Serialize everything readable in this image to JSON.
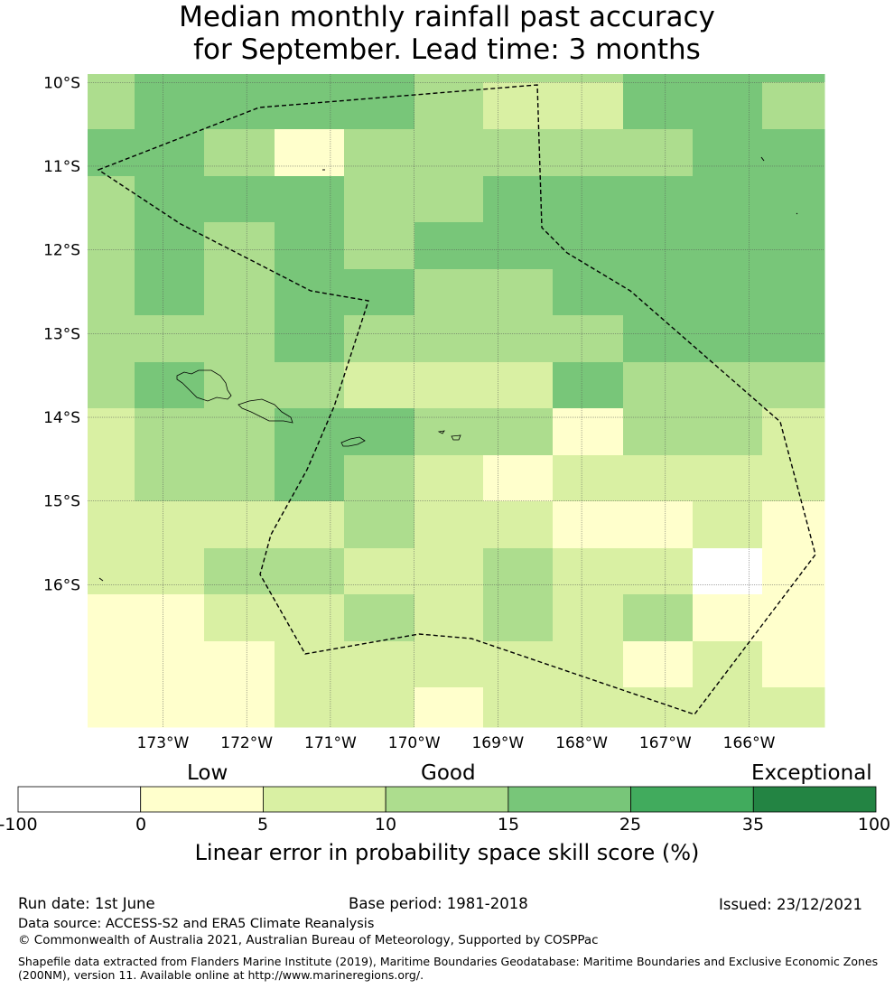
{
  "title_line1": "Median monthly rainfall past accuracy",
  "title_line2": "for September. Lead time: 3 months",
  "chart_data": {
    "type": "heatmap",
    "title": "Median monthly rainfall past accuracy for September. Lead time: 3 months",
    "y_ticks": [
      "10°S",
      "11°S",
      "12°S",
      "13°S",
      "14°S",
      "15°S",
      "16°S"
    ],
    "x_ticks": [
      "173°W",
      "172°W",
      "171°W",
      "170°W",
      "169°W",
      "168°W",
      "167°W",
      "166°W"
    ],
    "lon_range": [
      -173.9,
      -165.1
    ],
    "lat_range": [
      -17.7,
      -9.9
    ],
    "cell_grid": {
      "columns": 11,
      "rows": 14,
      "cell_class_values": [
        [
          3,
          4,
          4,
          4,
          4,
          3,
          3,
          3,
          4,
          4,
          4
        ],
        [
          3,
          4,
          4,
          4,
          4,
          3,
          2,
          2,
          4,
          4,
          3
        ],
        [
          4,
          4,
          3,
          1,
          3,
          3,
          3,
          3,
          3,
          4,
          4
        ],
        [
          3,
          4,
          4,
          4,
          3,
          3,
          4,
          4,
          4,
          4,
          4
        ],
        [
          3,
          4,
          3,
          4,
          3,
          4,
          4,
          4,
          4,
          4,
          4
        ],
        [
          3,
          4,
          3,
          4,
          4,
          3,
          3,
          4,
          4,
          4,
          4
        ],
        [
          3,
          3,
          3,
          4,
          3,
          3,
          3,
          3,
          4,
          4,
          4
        ],
        [
          3,
          4,
          3,
          3,
          2,
          2,
          2,
          4,
          3,
          3,
          3
        ],
        [
          2,
          3,
          3,
          4,
          4,
          3,
          3,
          1,
          3,
          3,
          2
        ],
        [
          2,
          3,
          3,
          4,
          3,
          2,
          1,
          2,
          2,
          2,
          2
        ],
        [
          2,
          2,
          2,
          2,
          3,
          2,
          2,
          1,
          1,
          2,
          1
        ],
        [
          2,
          2,
          3,
          3,
          2,
          2,
          3,
          2,
          2,
          0,
          1
        ],
        [
          1,
          1,
          2,
          2,
          3,
          2,
          3,
          2,
          3,
          1,
          1
        ],
        [
          1,
          1,
          1,
          2,
          2,
          2,
          2,
          2,
          1,
          2,
          1
        ]
      ],
      "extra_bottom_row": [
        1,
        1,
        1,
        2,
        2,
        1,
        2,
        2,
        2,
        2,
        2
      ]
    },
    "colorbar": {
      "boundaries": [
        "-100",
        "0",
        "5",
        "10",
        "15",
        "25",
        "35",
        "100"
      ],
      "colors": [
        "#ffffff",
        "#ffffcc",
        "#d9f0a3",
        "#addd8e",
        "#78c679",
        "#41ab5d",
        "#238443"
      ],
      "category_labels": [
        "Low",
        "Good",
        "Exceptional"
      ],
      "label": "Linear error in probability space skill score (%)"
    }
  },
  "footer": {
    "run_date": "Run date: 1st June",
    "base_period": "Base period: 1981-2018",
    "issued": "Issued: 23/12/2021",
    "data_source": "Data source: ACCESS-S2 and ERA5 Climate Reanalysis",
    "copyright": "© Commonwealth of Australia 2021, Australian Bureau of Meteorology, Supported by COSPPac",
    "shapefile_line1": "Shapefile data extracted from Flanders Marine Institute (2019), Maritime Boundaries Geodatabase: Maritime Boundaries and Exclusive Economic Zones",
    "shapefile_line2": "(200NM), version 11. Available online at http://www.marineregions.org/."
  }
}
